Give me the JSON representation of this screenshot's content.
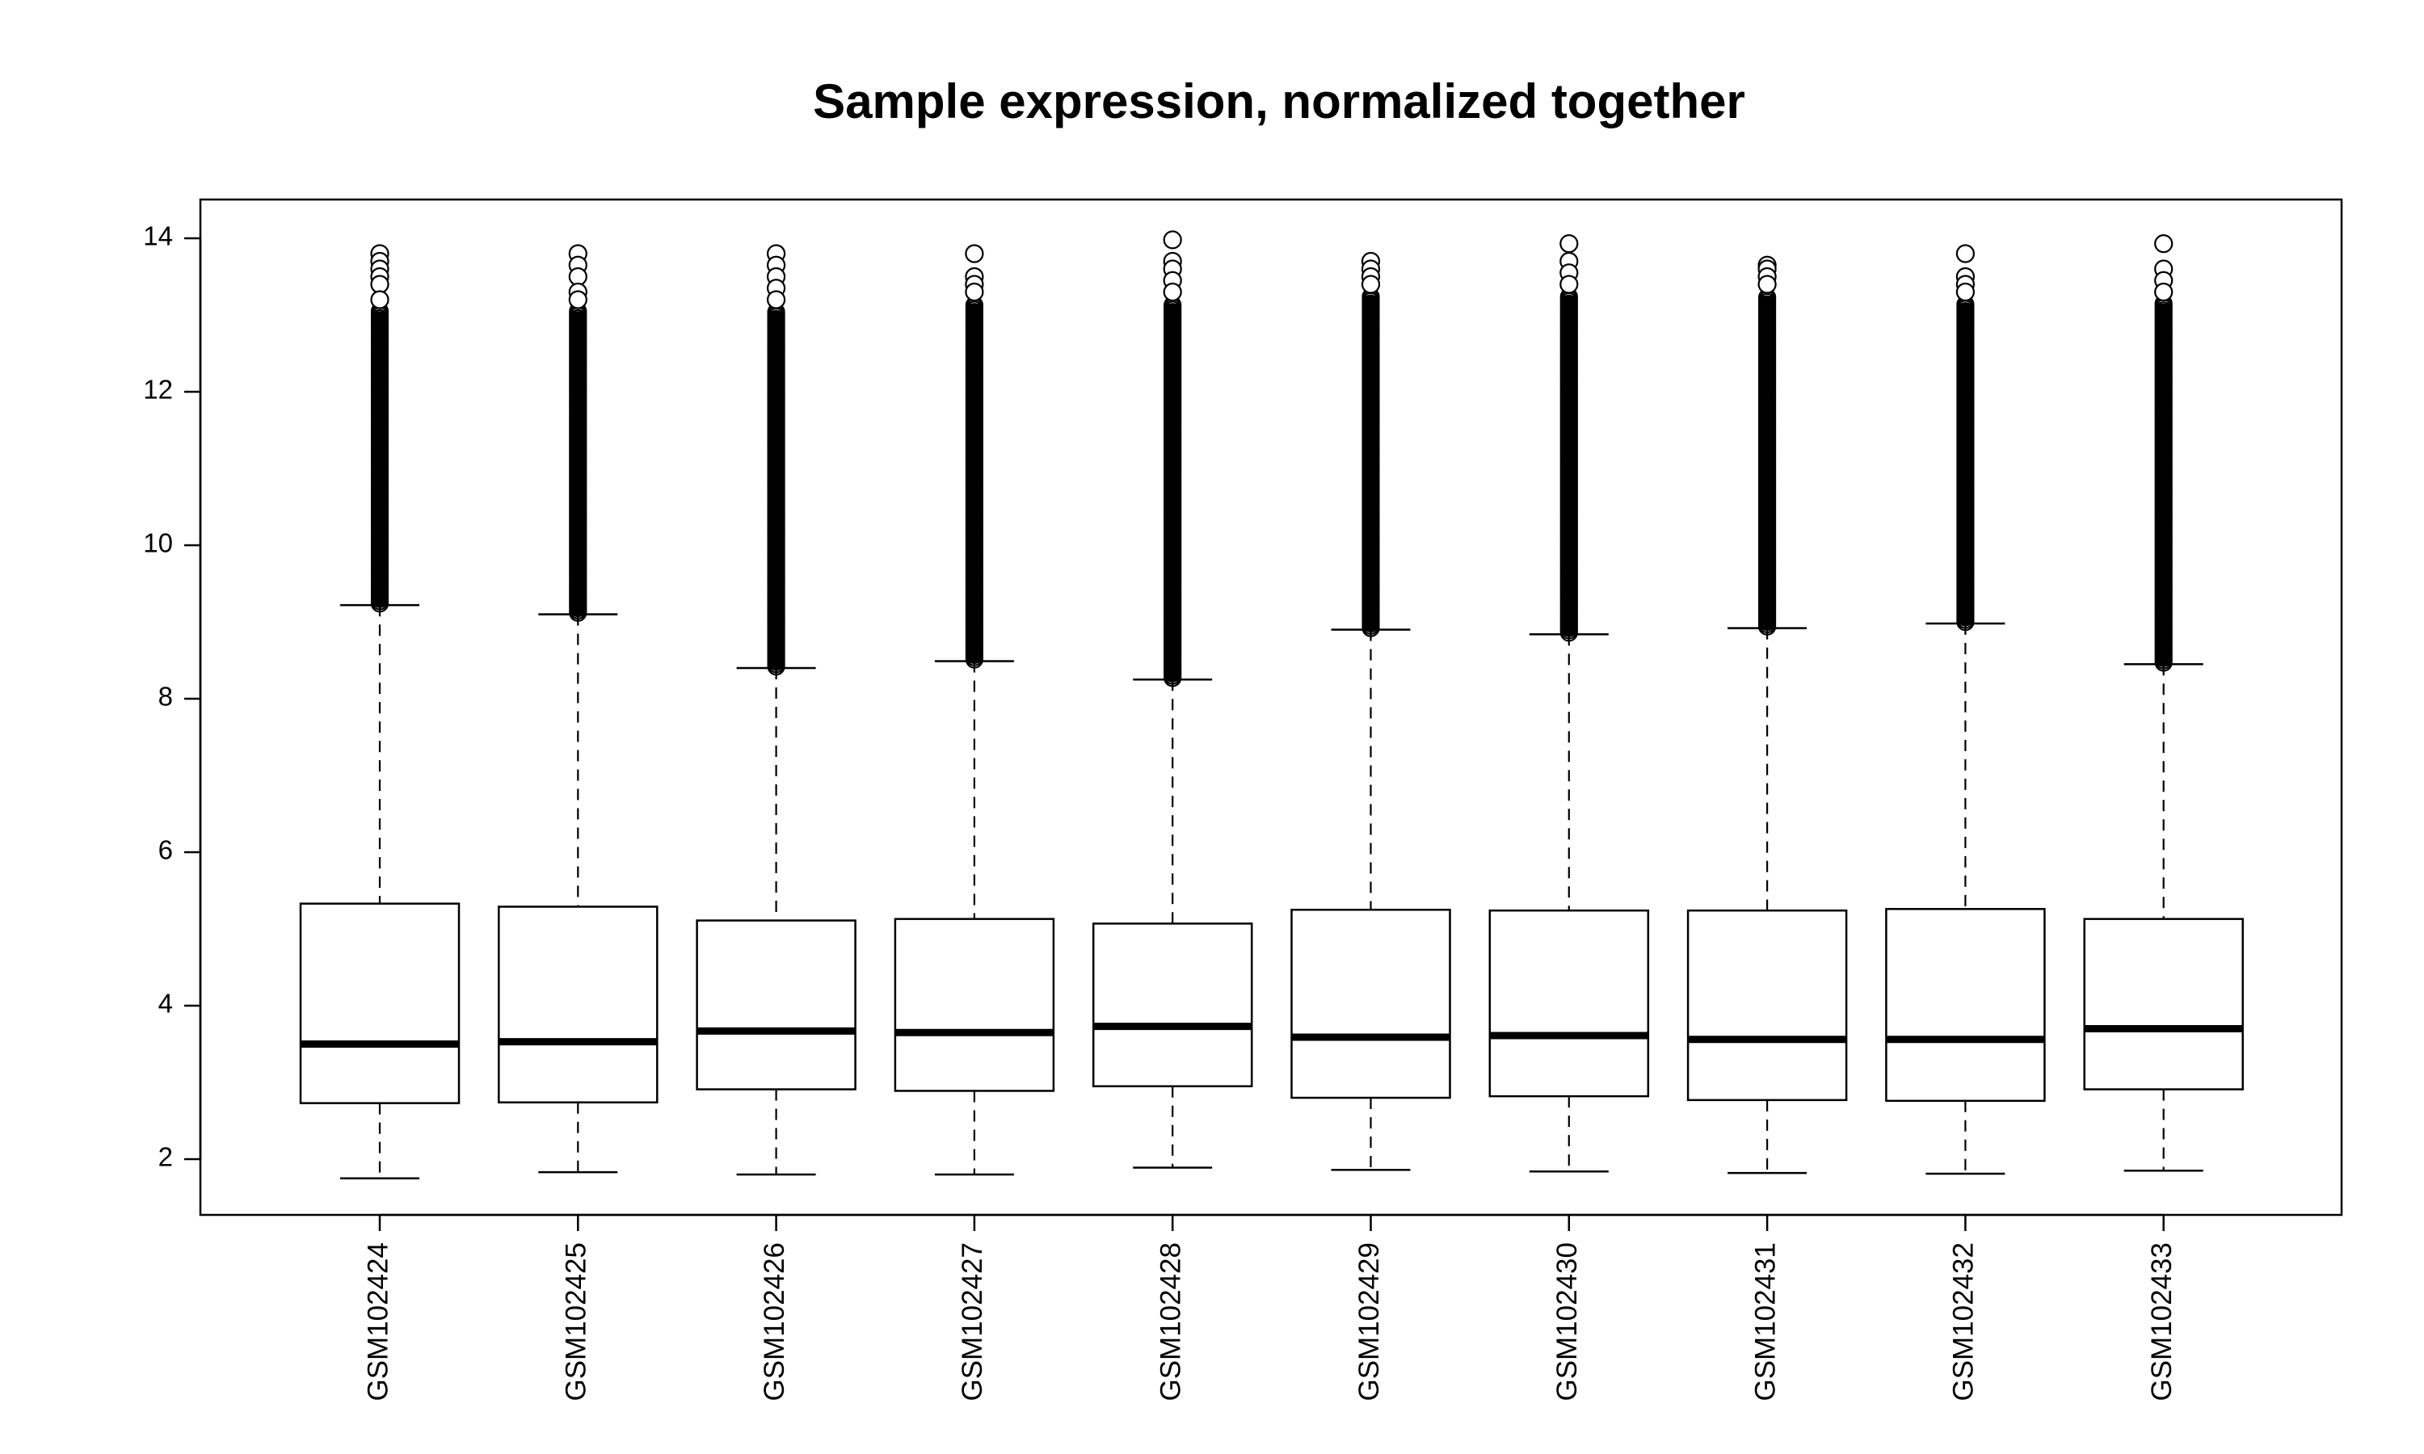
{
  "chart_data": {
    "type": "boxplot",
    "title": "Sample expression, normalized together",
    "xlabel": "",
    "ylabel": "",
    "ylim": [
      1.25,
      14.5
    ],
    "yticks": [
      2,
      4,
      6,
      8,
      10,
      12,
      14
    ],
    "grid": false,
    "legend": "none",
    "categories": [
      "GSM102424",
      "GSM102425",
      "GSM102426",
      "GSM102427",
      "GSM102428",
      "GSM102429",
      "GSM102430",
      "GSM102431",
      "GSM102432",
      "GSM102433"
    ],
    "boxes": [
      {
        "min": 1.75,
        "q1": 2.73,
        "median": 3.5,
        "q3": 5.33,
        "whisker_high": 9.22,
        "outliers_from": 9.22,
        "max": 13.8,
        "outliers_top": [
          13.8,
          13.7,
          13.6,
          13.5,
          13.4,
          13.2
        ]
      },
      {
        "min": 1.83,
        "q1": 2.74,
        "median": 3.53,
        "q3": 5.29,
        "whisker_high": 9.1,
        "outliers_from": 9.1,
        "max": 13.8,
        "outliers_top": [
          13.8,
          13.65,
          13.5,
          13.3,
          13.2
        ]
      },
      {
        "min": 1.8,
        "q1": 2.91,
        "median": 3.67,
        "q3": 5.11,
        "whisker_high": 8.4,
        "outliers_from": 8.4,
        "max": 13.8,
        "outliers_top": [
          13.8,
          13.65,
          13.5,
          13.35,
          13.2
        ]
      },
      {
        "min": 1.8,
        "q1": 2.89,
        "median": 3.65,
        "q3": 5.13,
        "whisker_high": 8.49,
        "outliers_from": 8.49,
        "max": 13.8,
        "outliers_top": [
          13.8,
          13.5,
          13.4,
          13.3
        ]
      },
      {
        "min": 1.89,
        "q1": 2.95,
        "median": 3.73,
        "q3": 5.07,
        "whisker_high": 8.25,
        "outliers_from": 8.25,
        "max": 13.98,
        "outliers_top": [
          13.98,
          13.7,
          13.6,
          13.45,
          13.3
        ]
      },
      {
        "min": 1.86,
        "q1": 2.8,
        "median": 3.59,
        "q3": 5.25,
        "whisker_high": 8.9,
        "outliers_from": 8.9,
        "max": 13.7,
        "outliers_top": [
          13.7,
          13.6,
          13.5,
          13.4
        ]
      },
      {
        "min": 1.84,
        "q1": 2.82,
        "median": 3.61,
        "q3": 5.24,
        "whisker_high": 8.84,
        "outliers_from": 8.84,
        "max": 13.93,
        "outliers_top": [
          13.93,
          13.7,
          13.55,
          13.4
        ]
      },
      {
        "min": 1.82,
        "q1": 2.77,
        "median": 3.56,
        "q3": 5.24,
        "whisker_high": 8.92,
        "outliers_from": 8.92,
        "max": 13.65,
        "outliers_top": [
          13.65,
          13.6,
          13.5,
          13.4
        ]
      },
      {
        "min": 1.81,
        "q1": 2.76,
        "median": 3.56,
        "q3": 5.26,
        "whisker_high": 8.98,
        "outliers_from": 8.98,
        "max": 13.8,
        "outliers_top": [
          13.8,
          13.5,
          13.4,
          13.3
        ]
      },
      {
        "min": 1.85,
        "q1": 2.91,
        "median": 3.7,
        "q3": 5.13,
        "whisker_high": 8.45,
        "outliers_from": 8.45,
        "max": 13.93,
        "outliers_top": [
          13.93,
          13.6,
          13.45,
          13.3
        ]
      }
    ]
  }
}
